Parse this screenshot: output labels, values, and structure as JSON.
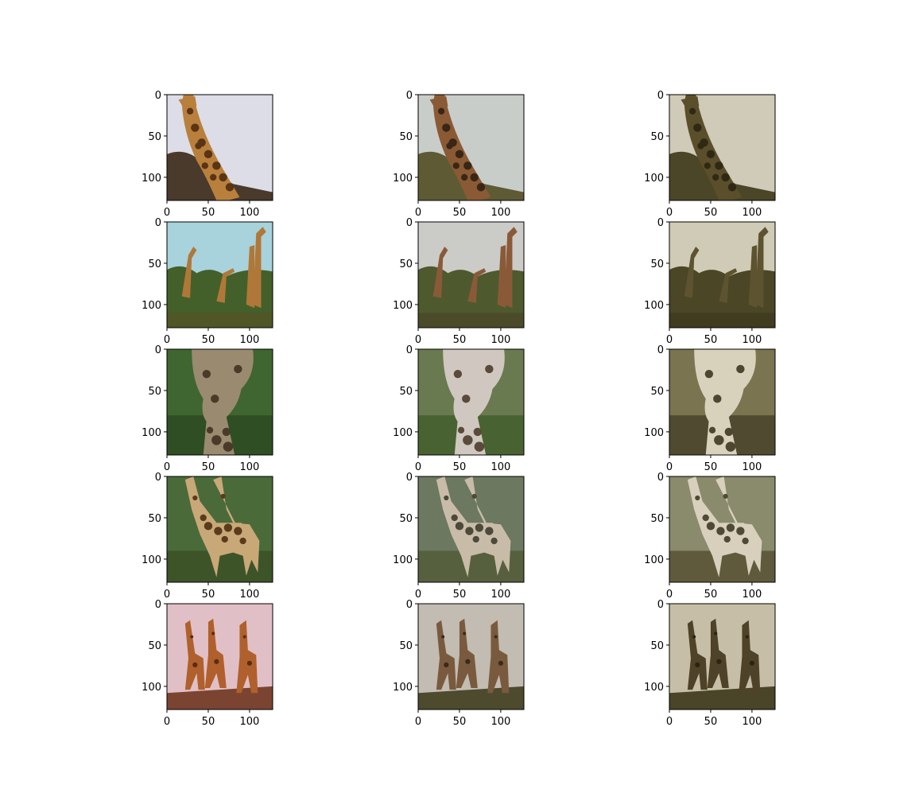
{
  "figure": {
    "rows": 5,
    "cols": 3,
    "background": "#ffffff"
  },
  "chart_data": {
    "type": "image-grid",
    "title": "",
    "image_size": [
      128,
      128
    ],
    "x_axis": {
      "lim": [
        0,
        128
      ],
      "ticks": [
        0,
        50,
        100
      ],
      "tick_labels": [
        "0",
        "50",
        "100"
      ]
    },
    "y_axis": {
      "lim": [
        128,
        0
      ],
      "inverted": true,
      "ticks": [
        0,
        50,
        100
      ],
      "tick_labels": [
        "0",
        "50",
        "100"
      ]
    },
    "grid": false,
    "panels": [
      {
        "row": 0,
        "col": 0,
        "content": "giraffe-neck-bush",
        "colors": {
          "sky": "#dcdde6",
          "ground": "#4a3a2c",
          "body": "#b8803c",
          "spots": "#5a3414"
        }
      },
      {
        "row": 0,
        "col": 1,
        "content": "giraffe-neck-bush",
        "colors": {
          "sky": "#c9cdc9",
          "ground": "#5e5a34",
          "body": "#8a5a34",
          "spots": "#3a2616"
        }
      },
      {
        "row": 0,
        "col": 2,
        "content": "giraffe-neck-bush",
        "colors": {
          "sky": "#cfcbb8",
          "ground": "#4b4627",
          "body": "#5b4e2a",
          "spots": "#2f2914"
        }
      },
      {
        "row": 1,
        "col": 0,
        "content": "giraffes-in-trees",
        "colors": {
          "sky": "#a8d2dc",
          "ground": "#44602a",
          "body": "#b07838",
          "spots": "#6a4420"
        }
      },
      {
        "row": 1,
        "col": 1,
        "content": "giraffes-in-trees",
        "colors": {
          "sky": "#cbcbc8",
          "ground": "#4e5a2e",
          "body": "#8a5a38",
          "spots": "#4a3020"
        }
      },
      {
        "row": 1,
        "col": 2,
        "content": "giraffes-in-trees",
        "colors": {
          "sky": "#cfcbb6",
          "ground": "#4a4626",
          "body": "#5e5330",
          "spots": "#302a16"
        }
      },
      {
        "row": 2,
        "col": 0,
        "content": "giraffe-face-closeup",
        "colors": {
          "sky": "#3f6630",
          "ground": "#2a4420",
          "body": "#9a8a70",
          "spots": "#4a3a28"
        }
      },
      {
        "row": 2,
        "col": 1,
        "content": "giraffe-face-closeup",
        "colors": {
          "sky": "#6a7a50",
          "ground": "#3a5a24",
          "body": "#d0c8c0",
          "spots": "#5a4a3a"
        }
      },
      {
        "row": 2,
        "col": 2,
        "content": "giraffe-face-closeup",
        "colors": {
          "sky": "#7a7450",
          "ground": "#3e3a22",
          "body": "#d8d2bc",
          "spots": "#4e4630"
        }
      },
      {
        "row": 3,
        "col": 0,
        "content": "two-giraffes-standing",
        "colors": {
          "sky": "#4a6a3a",
          "ground": "#3c5428",
          "body": "#c9a878",
          "spots": "#5a3c1c"
        }
      },
      {
        "row": 3,
        "col": 1,
        "content": "two-giraffes-standing",
        "colors": {
          "sky": "#6c7860",
          "ground": "#56603e",
          "body": "#c8bca8",
          "spots": "#4c4a3a"
        }
      },
      {
        "row": 3,
        "col": 2,
        "content": "two-giraffes-standing",
        "colors": {
          "sky": "#8a8a6c",
          "ground": "#605a3c",
          "body": "#d8d0bc",
          "spots": "#4e4a36"
        }
      },
      {
        "row": 4,
        "col": 0,
        "content": "three-giraffes-pink",
        "colors": {
          "sky": "#e0c0c6",
          "ground": "#7a4430",
          "body": "#b0602c",
          "spots": "#5a2c14"
        }
      },
      {
        "row": 4,
        "col": 1,
        "content": "three-giraffes-pink",
        "colors": {
          "sky": "#c2bcb2",
          "ground": "#4e4a2e",
          "body": "#7a5a3e",
          "spots": "#3a2a1a"
        }
      },
      {
        "row": 4,
        "col": 2,
        "content": "three-giraffes-pink",
        "colors": {
          "sky": "#c6bea6",
          "ground": "#4a4428",
          "body": "#4e4228",
          "spots": "#2a2414"
        }
      }
    ]
  }
}
